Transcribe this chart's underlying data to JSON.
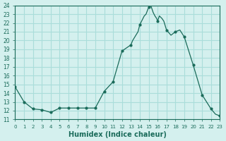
{
  "title": "",
  "xlabel": "Humidex (Indice chaleur)",
  "ylabel": "",
  "bg_color": "#d4f0ee",
  "grid_color": "#aaddda",
  "line_color": "#1a6b5a",
  "marker_color": "#1a6b5a",
  "xlim": [
    0,
    23
  ],
  "ylim": [
    11,
    24
  ],
  "yticks": [
    11,
    12,
    13,
    14,
    15,
    16,
    17,
    18,
    19,
    20,
    21,
    22,
    23,
    24
  ],
  "xticks": [
    0,
    1,
    2,
    3,
    4,
    5,
    6,
    7,
    8,
    9,
    10,
    11,
    12,
    13,
    14,
    15,
    16,
    17,
    18,
    19,
    20,
    21,
    22,
    23
  ],
  "x": [
    0,
    1,
    2,
    3,
    4,
    5,
    6,
    7,
    8,
    9,
    10,
    11,
    12,
    13,
    13.2,
    13.5,
    13.8,
    14,
    14.2,
    14.5,
    14.7,
    15,
    15.2,
    15.4,
    15.5,
    15.7,
    15.9,
    16,
    16.2,
    16.5,
    16.7,
    17,
    17.5,
    18,
    18.5,
    19,
    20,
    21,
    22,
    22.5,
    23
  ],
  "y": [
    14.7,
    13.0,
    12.2,
    12.1,
    11.8,
    12.3,
    12.3,
    12.3,
    12.3,
    12.3,
    14.2,
    15.3,
    18.8,
    19.5,
    20.0,
    20.5,
    21.0,
    21.8,
    22.2,
    22.8,
    23.0,
    23.8,
    24.1,
    23.5,
    23.2,
    22.8,
    22.5,
    22.2,
    22.8,
    22.5,
    22.2,
    21.2,
    20.6,
    21.0,
    21.2,
    20.4,
    17.2,
    13.8,
    12.2,
    11.6,
    11.4
  ],
  "marker_x": [
    0,
    1,
    2,
    3,
    4,
    5,
    6,
    7,
    8,
    9,
    10,
    11,
    12,
    13,
    14,
    15,
    16,
    17,
    18,
    19,
    20,
    21,
    22,
    23
  ],
  "marker_y": [
    14.7,
    13.0,
    12.2,
    12.1,
    11.8,
    12.3,
    12.3,
    12.3,
    12.3,
    12.3,
    14.2,
    15.3,
    18.8,
    19.5,
    21.8,
    23.8,
    22.2,
    21.2,
    21.0,
    20.4,
    17.2,
    13.8,
    12.2,
    11.4
  ]
}
